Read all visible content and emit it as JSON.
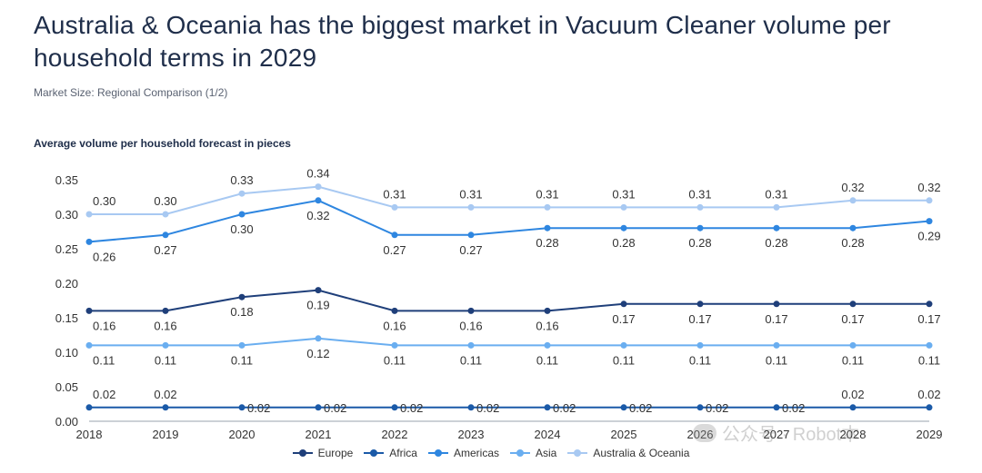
{
  "header": {
    "title": "Australia & Oceania has the biggest market in Vacuum Cleaner volume per household terms in 2029",
    "subtitle": "Market Size: Regional Comparison (1/2)",
    "chart_title": "Average volume per household forecast in pieces"
  },
  "watermark": "公众号 · Robot本",
  "chart_data": {
    "type": "line",
    "title": "Average volume per household forecast in pieces",
    "xlabel": "",
    "ylabel": "",
    "ylim": [
      0,
      0.35
    ],
    "yticks": [
      "0.00",
      "0.05",
      "0.10",
      "0.15",
      "0.20",
      "0.25",
      "0.30",
      "0.35"
    ],
    "categories": [
      "2018",
      "2019",
      "2020",
      "2021",
      "2022",
      "2023",
      "2024",
      "2025",
      "2026",
      "2027",
      "2028",
      "2029"
    ],
    "legend_position": "bottom",
    "series": [
      {
        "name": "Europe",
        "color": "#1f3f7a",
        "values": [
          0.16,
          0.16,
          0.18,
          0.19,
          0.16,
          0.16,
          0.16,
          0.17,
          0.17,
          0.17,
          0.17,
          0.17
        ],
        "labels": [
          "0.16",
          "0.16",
          "0.18",
          "0.19",
          "0.16",
          "0.16",
          "0.16",
          "0.17",
          "0.17",
          "0.17",
          "0.17",
          "0.17"
        ]
      },
      {
        "name": "Africa",
        "color": "#1b5aa8",
        "values": [
          0.02,
          0.02,
          0.02,
          0.02,
          0.02,
          0.02,
          0.02,
          0.02,
          0.02,
          0.02,
          0.02,
          0.02
        ],
        "labels": [
          "0.02",
          "0.02",
          "0.02",
          "0.02",
          "0.02",
          "0.02",
          "0.02",
          "0.02",
          "0.02",
          "0.02",
          "0.02",
          "0.02"
        ]
      },
      {
        "name": "Americas",
        "color": "#2e86e0",
        "values": [
          0.26,
          0.27,
          0.3,
          0.32,
          0.27,
          0.27,
          0.28,
          0.28,
          0.28,
          0.28,
          0.28,
          0.29
        ],
        "labels": [
          "0.26",
          "0.27",
          "0.30",
          "0.32",
          "0.27",
          "0.27",
          "0.28",
          "0.28",
          "0.28",
          "0.28",
          "0.28",
          "0.29"
        ]
      },
      {
        "name": "Asia",
        "color": "#6aaef0",
        "values": [
          0.11,
          0.11,
          0.11,
          0.12,
          0.11,
          0.11,
          0.11,
          0.11,
          0.11,
          0.11,
          0.11,
          0.11
        ],
        "labels": [
          "0.11",
          "0.11",
          "0.11",
          "0.12",
          "0.11",
          "0.11",
          "0.11",
          "0.11",
          "0.11",
          "0.11",
          "0.11",
          "0.11"
        ]
      },
      {
        "name": "Australia & Oceania",
        "color": "#a8c9f2",
        "values": [
          0.3,
          0.3,
          0.33,
          0.34,
          0.31,
          0.31,
          0.31,
          0.31,
          0.31,
          0.31,
          0.32,
          0.32
        ],
        "labels": [
          "0.30",
          "0.30",
          "0.33",
          "0.34",
          "0.31",
          "0.31",
          "0.31",
          "0.31",
          "0.31",
          "0.31",
          "0.32",
          "0.32"
        ]
      }
    ]
  }
}
